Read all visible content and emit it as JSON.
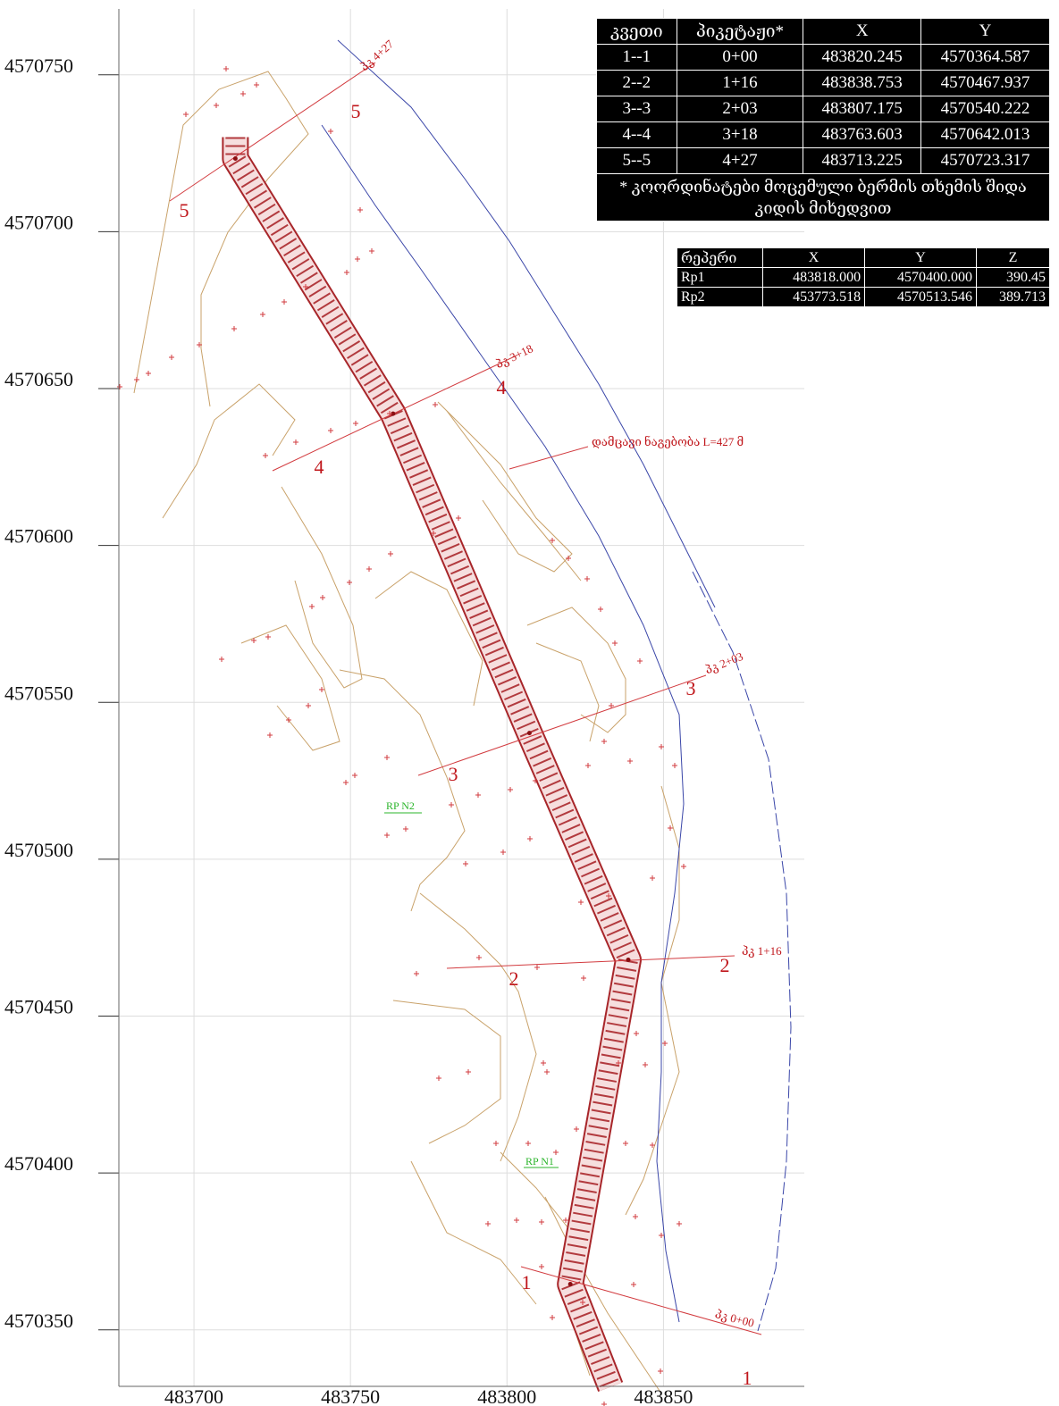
{
  "map": {
    "xlim": [
      483676,
      483895
    ],
    "ylim": [
      4570332,
      4570771
    ],
    "xticks": [
      483700,
      483750,
      483800,
      483850
    ],
    "yticks": [
      4570350,
      4570400,
      4570450,
      4570500,
      4570550,
      4570600,
      4570650,
      4570700,
      4570750
    ]
  },
  "section_labels": [
    "1",
    "2",
    "3",
    "4",
    "5"
  ],
  "station_labels": [
    "პკ 0+00",
    "პკ 1+16",
    "პკ 2+03",
    "პკ 3+18",
    "პკ 4+27"
  ],
  "annotation": "დამცავი ნაგებობა L=427 მ",
  "benchmark_labels": [
    "RP N1",
    "RP N2"
  ],
  "sections_table": {
    "columns": [
      "კვეთი",
      "პიკეტაჟი*",
      "X",
      "Y"
    ],
    "rows": [
      [
        "1--1",
        "0+00",
        483820.245,
        4570364.587
      ],
      [
        "2--2",
        "1+16",
        483838.753,
        4570467.937
      ],
      [
        "3--3",
        "2+03",
        483807.175,
        4570540.222
      ],
      [
        "4--4",
        "3+18",
        483763.603,
        4570642.013
      ],
      [
        "5--5",
        "4+27",
        483713.225,
        4570723.317
      ]
    ],
    "footnote": "* კოორდინატები მოცემული ბერმის თხემის შიდა კიდის მიხედვით"
  },
  "benchmarks_table": {
    "columns": [
      "რეპერი",
      "X",
      "Y",
      "Z"
    ],
    "rows": [
      [
        "Rp1",
        "483818.000",
        "4570400.000",
        "390.45"
      ],
      [
        "Rp2",
        "453773.518",
        "4570513.546",
        "389.713"
      ]
    ]
  }
}
